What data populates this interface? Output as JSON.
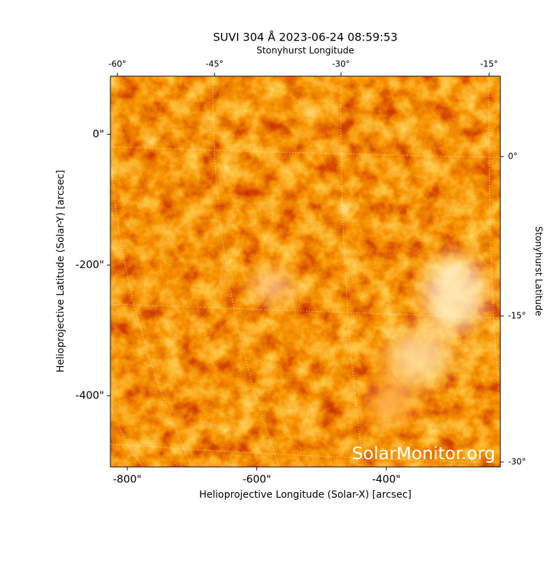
{
  "chart_data": {
    "type": "image",
    "title": "SUVI 304 Å 2023-06-24 08:59:53",
    "x_label": "Helioprojective Longitude (Solar-X) [arcsec]",
    "y_label": "Helioprojective Latitude (Solar-Y) [arcsec]",
    "top_label": "Stonyhurst Longitude",
    "right_label": "Stonyhurst Latitude",
    "watermark": "SolarMonitor.org",
    "xlim": [
      -826,
      -224
    ],
    "ylim": [
      -509,
      89
    ],
    "xticks": [
      {
        "value": -800,
        "label": "-800\""
      },
      {
        "value": -600,
        "label": "-600\""
      },
      {
        "value": -400,
        "label": "-400\""
      }
    ],
    "yticks": [
      {
        "value": 0,
        "label": "0\""
      },
      {
        "value": -200,
        "label": "-200\""
      },
      {
        "value": -400,
        "label": "-400\""
      }
    ],
    "top_ticks": [
      {
        "value": -60,
        "label": "-60°"
      },
      {
        "value": -45,
        "label": "-45°"
      },
      {
        "value": -30,
        "label": "-30°"
      },
      {
        "value": -15,
        "label": "-15°"
      }
    ],
    "right_ticks": [
      {
        "value": 0,
        "label": "0°"
      },
      {
        "value": -15,
        "label": "-15°"
      },
      {
        "value": -30,
        "label": "-30°"
      }
    ]
  }
}
